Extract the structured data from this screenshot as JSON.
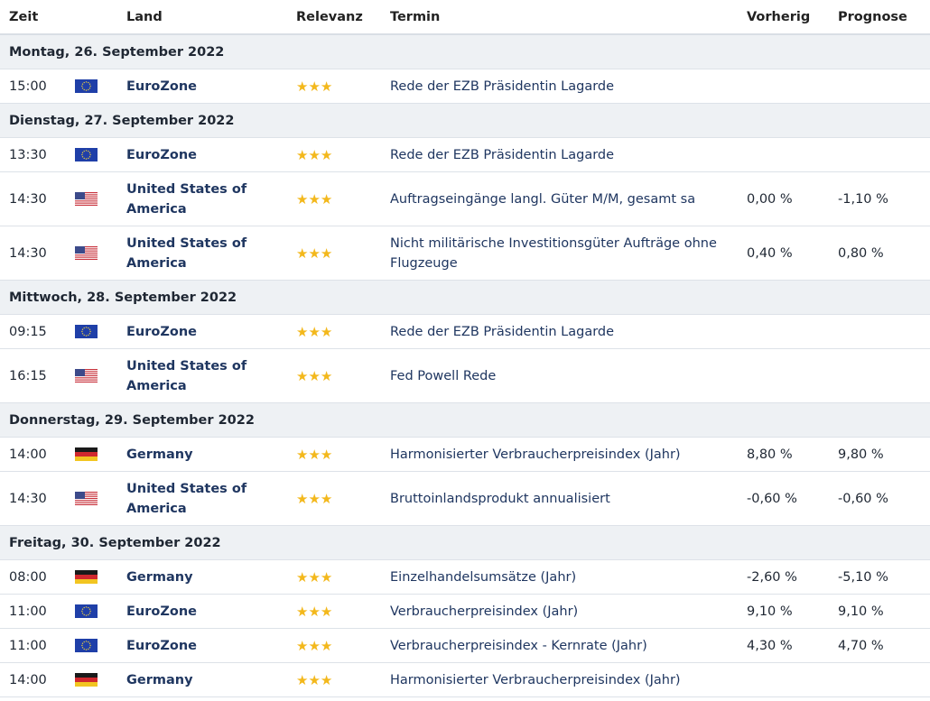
{
  "header": {
    "zeit": "Zeit",
    "land": "Land",
    "relevanz": "Relevanz",
    "termin": "Termin",
    "vorherig": "Vorherig",
    "prognose": "Prognose"
  },
  "days": [
    {
      "label": "Montag, 26. September 2022",
      "events": [
        {
          "time": "15:00",
          "flag": "eu-flag",
          "country": "EuroZone",
          "stars": "★★★",
          "term": "Rede der EZB Präsidentin Lagarde",
          "prev": "",
          "prog": ""
        }
      ]
    },
    {
      "label": "Dienstag, 27. September 2022",
      "events": [
        {
          "time": "13:30",
          "flag": "eu-flag",
          "country": "EuroZone",
          "stars": "★★★",
          "term": "Rede der EZB Präsidentin Lagarde",
          "prev": "",
          "prog": ""
        },
        {
          "time": "14:30",
          "flag": "us-flag",
          "country": "United States of America",
          "stars": "★★★",
          "term": "Auftragseingänge langl. Güter M/M, gesamt sa",
          "prev": "0,00 %",
          "prog": "-1,10 %"
        },
        {
          "time": "14:30",
          "flag": "us-flag",
          "country": "United States of America",
          "stars": "★★★",
          "term": "Nicht militärische Investitionsgüter Aufträge ohne Flugzeuge",
          "prev": "0,40 %",
          "prog": "0,80 %"
        }
      ]
    },
    {
      "label": "Mittwoch, 28. September 2022",
      "events": [
        {
          "time": "09:15",
          "flag": "eu-flag",
          "country": "EuroZone",
          "stars": "★★★",
          "term": "Rede der EZB Präsidentin Lagarde",
          "prev": "",
          "prog": ""
        },
        {
          "time": "16:15",
          "flag": "us-flag",
          "country": "United States of America",
          "stars": "★★★",
          "term": "Fed Powell Rede",
          "prev": "",
          "prog": ""
        }
      ]
    },
    {
      "label": "Donnerstag, 29. September 2022",
      "events": [
        {
          "time": "14:00",
          "flag": "de-flag",
          "country": "Germany",
          "stars": "★★★",
          "term": "Harmonisierter Verbraucherpreisindex (Jahr)",
          "prev": "8,80 %",
          "prog": "9,80 %"
        },
        {
          "time": "14:30",
          "flag": "us-flag",
          "country": "United States of America",
          "stars": "★★★",
          "term": "Bruttoinlandsprodukt annualisiert",
          "prev": "-0,60 %",
          "prog": "-0,60 %"
        }
      ]
    },
    {
      "label": "Freitag, 30. September 2022",
      "events": [
        {
          "time": "08:00",
          "flag": "de-flag",
          "country": "Germany",
          "stars": "★★★",
          "term": "Einzelhandelsumsätze (Jahr)",
          "prev": "-2,60 %",
          "prog": "-5,10 %"
        },
        {
          "time": "11:00",
          "flag": "eu-flag",
          "country": "EuroZone",
          "stars": "★★★",
          "term": "Verbraucherpreisindex (Jahr)",
          "prev": "9,10 %",
          "prog": "9,10 %"
        },
        {
          "time": "11:00",
          "flag": "eu-flag",
          "country": "EuroZone",
          "stars": "★★★",
          "term": "Verbraucherpreisindex - Kernrate (Jahr)",
          "prev": "4,30 %",
          "prog": "4,70 %"
        },
        {
          "time": "14:00",
          "flag": "de-flag",
          "country": "Germany",
          "stars": "★★★",
          "term": "Harmonisierter Verbraucherpreisindex (Jahr)",
          "prev": "",
          "prog": ""
        }
      ]
    }
  ],
  "colors": {
    "link": "#1f3660",
    "star": "#f3b81c",
    "day_bg": "#eef1f4"
  }
}
